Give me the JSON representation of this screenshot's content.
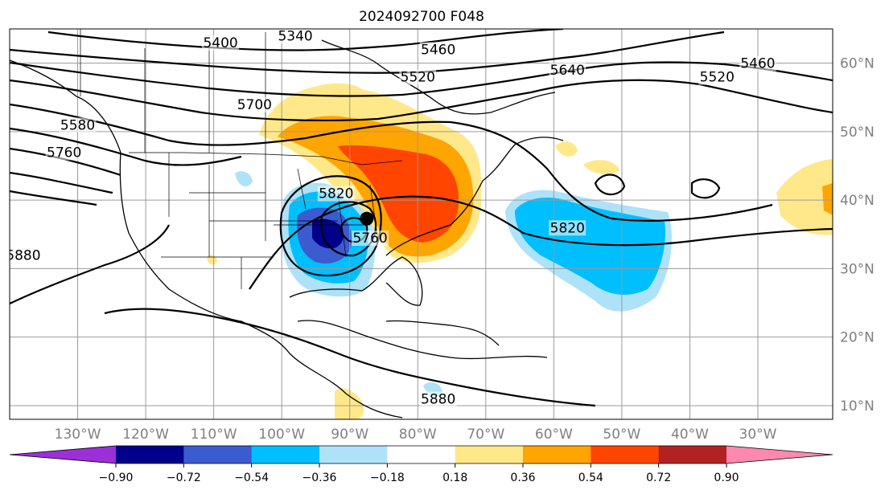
{
  "title": "2024092700 F048",
  "map": {
    "lat_labels": [
      {
        "text": "60°N",
        "lat": 60
      },
      {
        "text": "50°N",
        "lat": 50
      },
      {
        "text": "40°N",
        "lat": 40
      },
      {
        "text": "30°N",
        "lat": 30
      },
      {
        "text": "20°N",
        "lat": 20
      },
      {
        "text": "10°N",
        "lat": 10
      }
    ],
    "lon_labels": [
      {
        "text": "130°W",
        "lon": -130
      },
      {
        "text": "120°W",
        "lon": -120
      },
      {
        "text": "110°W",
        "lon": -110
      },
      {
        "text": "100°W",
        "lon": -100
      },
      {
        "text": "90°W",
        "lon": -90
      },
      {
        "text": "80°W",
        "lon": -80
      },
      {
        "text": "70°W",
        "lon": -70
      },
      {
        "text": "60°W",
        "lon": -60
      },
      {
        "text": "50°W",
        "lon": -50
      },
      {
        "text": "40°W",
        "lon": -40
      },
      {
        "text": "30°W",
        "lon": -30
      }
    ],
    "extent": {
      "lon_min": -140,
      "lon_max": -19,
      "lat_min": 8,
      "lat_max": 65
    },
    "center_marker": {
      "lon": -87.5,
      "lat": 37.3
    },
    "contour_labels": [
      {
        "text": "5400",
        "lon": -109,
        "lat": 63
      },
      {
        "text": "5340",
        "lon": -98,
        "lat": 64
      },
      {
        "text": "5460",
        "lon": -77,
        "lat": 62
      },
      {
        "text": "5520",
        "lon": -80,
        "lat": 58
      },
      {
        "text": "5640",
        "lon": -58,
        "lat": 59
      },
      {
        "text": "5460",
        "lon": -30,
        "lat": 60
      },
      {
        "text": "5520",
        "lon": -36,
        "lat": 58
      },
      {
        "text": "5580",
        "lon": -130,
        "lat": 51
      },
      {
        "text": "5700",
        "lon": -104,
        "lat": 54
      },
      {
        "text": "5760",
        "lon": -132,
        "lat": 47
      },
      {
        "text": "5820",
        "lon": -92,
        "lat": 41
      },
      {
        "text": "5760",
        "lon": -87,
        "lat": 34.5
      },
      {
        "text": "5820",
        "lon": -58,
        "lat": 36
      },
      {
        "text": "5880",
        "lon": -138,
        "lat": 32
      },
      {
        "text": "5880",
        "lon": -77,
        "lat": 11
      }
    ]
  },
  "colorbar": {
    "ticks": [
      "−0.90",
      "−0.72",
      "−0.54",
      "−0.36",
      "−0.18",
      "0.18",
      "0.36",
      "0.54",
      "0.72",
      "0.90"
    ],
    "colors": [
      "#9b30d9",
      "#00008b",
      "#3b5bd1",
      "#00bfff",
      "#aee2f8",
      "#ffffff",
      "#ffe88a",
      "#ffa500",
      "#ff4500",
      "#b22222",
      "#ff88b0"
    ]
  }
}
